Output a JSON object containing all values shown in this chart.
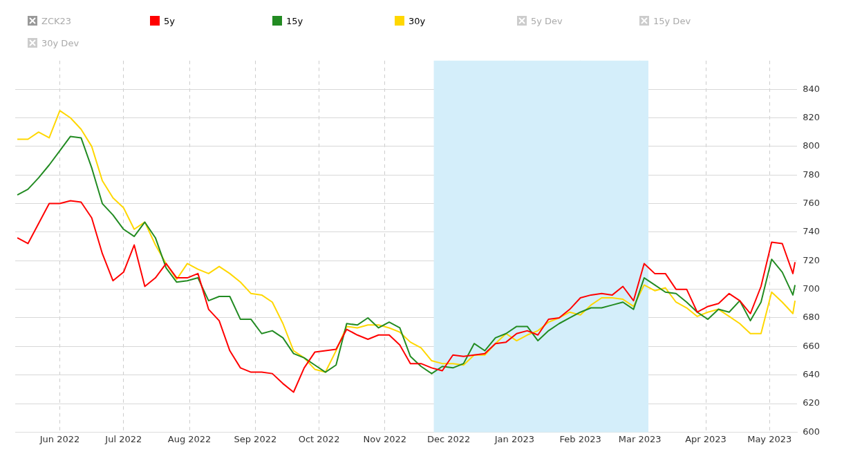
{
  "chart_data": {
    "type": "line",
    "legend": "top left",
    "grid": true,
    "marker": "none",
    "line_style": "solid",
    "x": [
      "2022-05-12",
      "2022-05-17",
      "2022-05-22",
      "2022-05-27",
      "2022-06-01",
      "2022-06-06",
      "2022-06-11",
      "2022-06-16",
      "2022-06-21",
      "2022-06-26",
      "2022-07-01",
      "2022-07-06",
      "2022-07-11",
      "2022-07-16",
      "2022-07-21",
      "2022-07-26",
      "2022-07-31",
      "2022-08-05",
      "2022-08-10",
      "2022-08-15",
      "2022-08-20",
      "2022-08-25",
      "2022-08-30",
      "2022-09-04",
      "2022-09-09",
      "2022-09-14",
      "2022-09-19",
      "2022-09-24",
      "2022-09-29",
      "2022-10-04",
      "2022-10-09",
      "2022-10-14",
      "2022-10-19",
      "2022-10-24",
      "2022-10-29",
      "2022-11-03",
      "2022-11-08",
      "2022-11-13",
      "2022-11-18",
      "2022-11-23",
      "2022-11-28",
      "2022-12-03",
      "2022-12-08",
      "2022-12-13",
      "2022-12-18",
      "2022-12-23",
      "2022-12-28",
      "2023-01-02",
      "2023-01-07",
      "2023-01-12",
      "2023-01-17",
      "2023-01-22",
      "2023-01-27",
      "2023-02-01",
      "2023-02-06",
      "2023-02-11",
      "2023-02-16",
      "2023-02-21",
      "2023-02-26",
      "2023-03-03",
      "2023-03-08",
      "2023-03-13",
      "2023-03-18",
      "2023-03-23",
      "2023-03-28",
      "2023-04-02",
      "2023-04-07",
      "2023-04-12",
      "2023-04-17",
      "2023-04-22",
      "2023-04-27",
      "2023-05-02",
      "2023-05-07",
      "2023-05-12",
      "2023-05-13"
    ],
    "series": [
      {
        "name": "ZCK23",
        "color": "#999999",
        "values": [
          null,
          null,
          null,
          null,
          null,
          null,
          null,
          null,
          null,
          null,
          null,
          null,
          null,
          null,
          null,
          null,
          null,
          null,
          null,
          null,
          null,
          null,
          null,
          null,
          null,
          null,
          null,
          null,
          null,
          null,
          null,
          null,
          null,
          null,
          null,
          null,
          null,
          null,
          null,
          null,
          null,
          null,
          null,
          null,
          null,
          null,
          null,
          null,
          null,
          null,
          null,
          null,
          null,
          null,
          null,
          null,
          null,
          null,
          null,
          null,
          null,
          null,
          null,
          null,
          null,
          null,
          null,
          null,
          null,
          null,
          null,
          null,
          null,
          null,
          null
        ]
      },
      {
        "name": "5y",
        "color": "#ff0000",
        "values": [
          736,
          732,
          746,
          760,
          760,
          762,
          761,
          750,
          725,
          706,
          712,
          731,
          702,
          708,
          718,
          708,
          708,
          711,
          686,
          678,
          657,
          645,
          642,
          642,
          641,
          634,
          628,
          645,
          656,
          657,
          658,
          672,
          668,
          665,
          668,
          668,
          661,
          648,
          648,
          645,
          643,
          654,
          653,
          654,
          655,
          662,
          663,
          669,
          671,
          668,
          679,
          680,
          686,
          694,
          696,
          697,
          696,
          702,
          692,
          718,
          711,
          711,
          700,
          700,
          684,
          688,
          690,
          697,
          692,
          683,
          702,
          733,
          732,
          711,
          719
        ]
      },
      {
        "name": "15y",
        "color": "#228b22",
        "values": [
          766,
          770,
          778,
          787,
          797,
          807,
          806,
          785,
          760,
          752,
          742,
          737,
          747,
          736,
          715,
          705,
          706,
          708,
          692,
          695,
          695,
          679,
          679,
          669,
          671,
          666,
          655,
          652,
          647,
          642,
          647,
          676,
          675,
          680,
          673,
          677,
          673,
          653,
          646,
          641,
          646,
          645,
          648,
          662,
          657,
          666,
          669,
          674,
          674,
          664,
          671,
          676,
          680,
          684,
          687,
          687,
          689,
          691,
          686,
          708,
          703,
          698,
          697,
          691,
          684,
          679,
          686,
          684,
          692,
          678,
          691,
          721,
          712,
          696,
          703
        ]
      },
      {
        "name": "30y",
        "color": "#ffd700",
        "values": [
          805,
          805,
          810,
          806,
          825,
          820,
          812,
          800,
          776,
          764,
          757,
          742,
          747,
          731,
          718,
          707,
          718,
          714,
          711,
          716,
          711,
          705,
          697,
          696,
          691,
          676,
          657,
          652,
          644,
          642,
          657,
          674,
          673,
          675,
          675,
          673,
          670,
          663,
          659,
          650,
          648,
          648,
          647,
          654,
          654,
          662,
          669,
          664,
          668,
          671,
          677,
          680,
          684,
          682,
          689,
          694,
          694,
          693,
          688,
          703,
          699,
          701,
          691,
          687,
          681,
          684,
          686,
          681,
          676,
          669,
          669,
          698,
          691,
          683,
          692
        ]
      },
      {
        "name": "5y Dev",
        "color": "#cccccc",
        "values": [
          null,
          null,
          null,
          null,
          null,
          null,
          null,
          null,
          null,
          null,
          null,
          null,
          null,
          null,
          null,
          null,
          null,
          null,
          null,
          null,
          null,
          null,
          null,
          null,
          null,
          null,
          null,
          null,
          null,
          null,
          null,
          null,
          null,
          null,
          null,
          null,
          null,
          null,
          null,
          null,
          null,
          null,
          null,
          null,
          null,
          null,
          null,
          null,
          null,
          null,
          null,
          null,
          null,
          null,
          null,
          null,
          null,
          null,
          null,
          null,
          null,
          null,
          null,
          null,
          null,
          null,
          null,
          null,
          null,
          null,
          null,
          null,
          null,
          null,
          null
        ]
      },
      {
        "name": "15y Dev",
        "color": "#cccccc",
        "values": [
          null,
          null,
          null,
          null,
          null,
          null,
          null,
          null,
          null,
          null,
          null,
          null,
          null,
          null,
          null,
          null,
          null,
          null,
          null,
          null,
          null,
          null,
          null,
          null,
          null,
          null,
          null,
          null,
          null,
          null,
          null,
          null,
          null,
          null,
          null,
          null,
          null,
          null,
          null,
          null,
          null,
          null,
          null,
          null,
          null,
          null,
          null,
          null,
          null,
          null,
          null,
          null,
          null,
          null,
          null,
          null,
          null,
          null,
          null,
          null,
          null,
          null,
          null,
          null,
          null,
          null,
          null,
          null,
          null,
          null,
          null,
          null,
          null,
          null,
          null
        ]
      },
      {
        "name": "30y Dev",
        "color": "#cccccc",
        "values": [
          null,
          null,
          null,
          null,
          null,
          null,
          null,
          null,
          null,
          null,
          null,
          null,
          null,
          null,
          null,
          null,
          null,
          null,
          null,
          null,
          null,
          null,
          null,
          null,
          null,
          null,
          null,
          null,
          null,
          null,
          null,
          null,
          null,
          null,
          null,
          null,
          null,
          null,
          null,
          null,
          null,
          null,
          null,
          null,
          null,
          null,
          null,
          null,
          null,
          null,
          null,
          null,
          null,
          null,
          null,
          null,
          null,
          null,
          null,
          null,
          null,
          null,
          null,
          null,
          null,
          null,
          null,
          null,
          null,
          null,
          null,
          null,
          null,
          null,
          null
        ]
      }
    ],
    "xlim": [
      "2022-05-11",
      "2023-05-14"
    ],
    "xticks": [
      {
        "value": "2022-06-01",
        "label": "Jun 2022"
      },
      {
        "value": "2022-07-01",
        "label": "Jul 2022"
      },
      {
        "value": "2022-08-01",
        "label": "Aug 2022"
      },
      {
        "value": "2022-09-01",
        "label": "Sep 2022"
      },
      {
        "value": "2022-10-01",
        "label": "Oct 2022"
      },
      {
        "value": "2022-11-01",
        "label": "Nov 2022"
      },
      {
        "value": "2022-12-01",
        "label": "Dec 2022"
      },
      {
        "value": "2023-01-01",
        "label": "Jan 2023"
      },
      {
        "value": "2023-02-01",
        "label": "Feb 2023"
      },
      {
        "value": "2023-03-01",
        "label": "Mar 2023"
      },
      {
        "value": "2023-04-01",
        "label": "Apr 2023"
      },
      {
        "value": "2023-05-01",
        "label": "May 2023"
      }
    ],
    "ylim": [
      600,
      860
    ],
    "yticks": [
      600,
      620,
      640,
      660,
      680,
      700,
      720,
      740,
      760,
      780,
      800,
      820,
      840
    ],
    "bands": [
      {
        "axis": "x",
        "from": "2022-11-24",
        "to": "2023-03-05",
        "color": "#d4eefa"
      }
    ]
  }
}
